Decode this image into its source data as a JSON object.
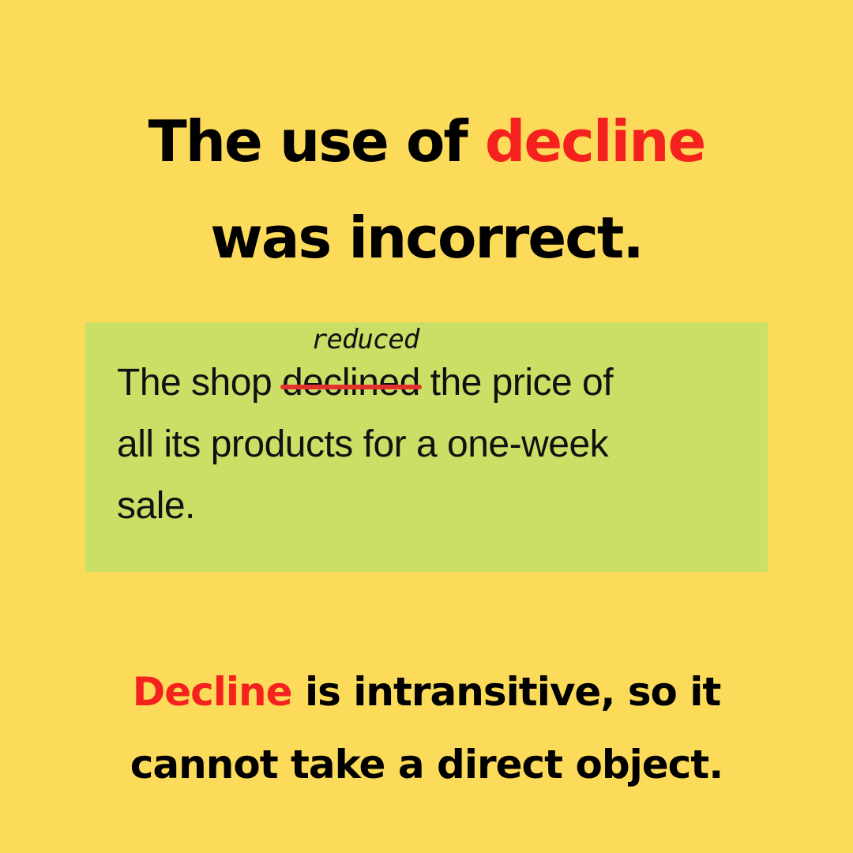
{
  "headline": {
    "part1": "The use of ",
    "highlight": "decline",
    "line2": "was incorrect."
  },
  "example": {
    "before": "The shop ",
    "struck_word": "declined",
    "correction": "reduced",
    "after_line1": " the price of",
    "line2": "all its products for a one-week",
    "line3": "sale."
  },
  "explanation": {
    "highlight": "Decline",
    "rest_line1": " is intransitive, so it",
    "line2": "cannot take a direct object."
  },
  "colors": {
    "background": "#FDDB5A",
    "box": "#C9DF66",
    "accent_red": "#F5211E",
    "text": "#000000"
  }
}
